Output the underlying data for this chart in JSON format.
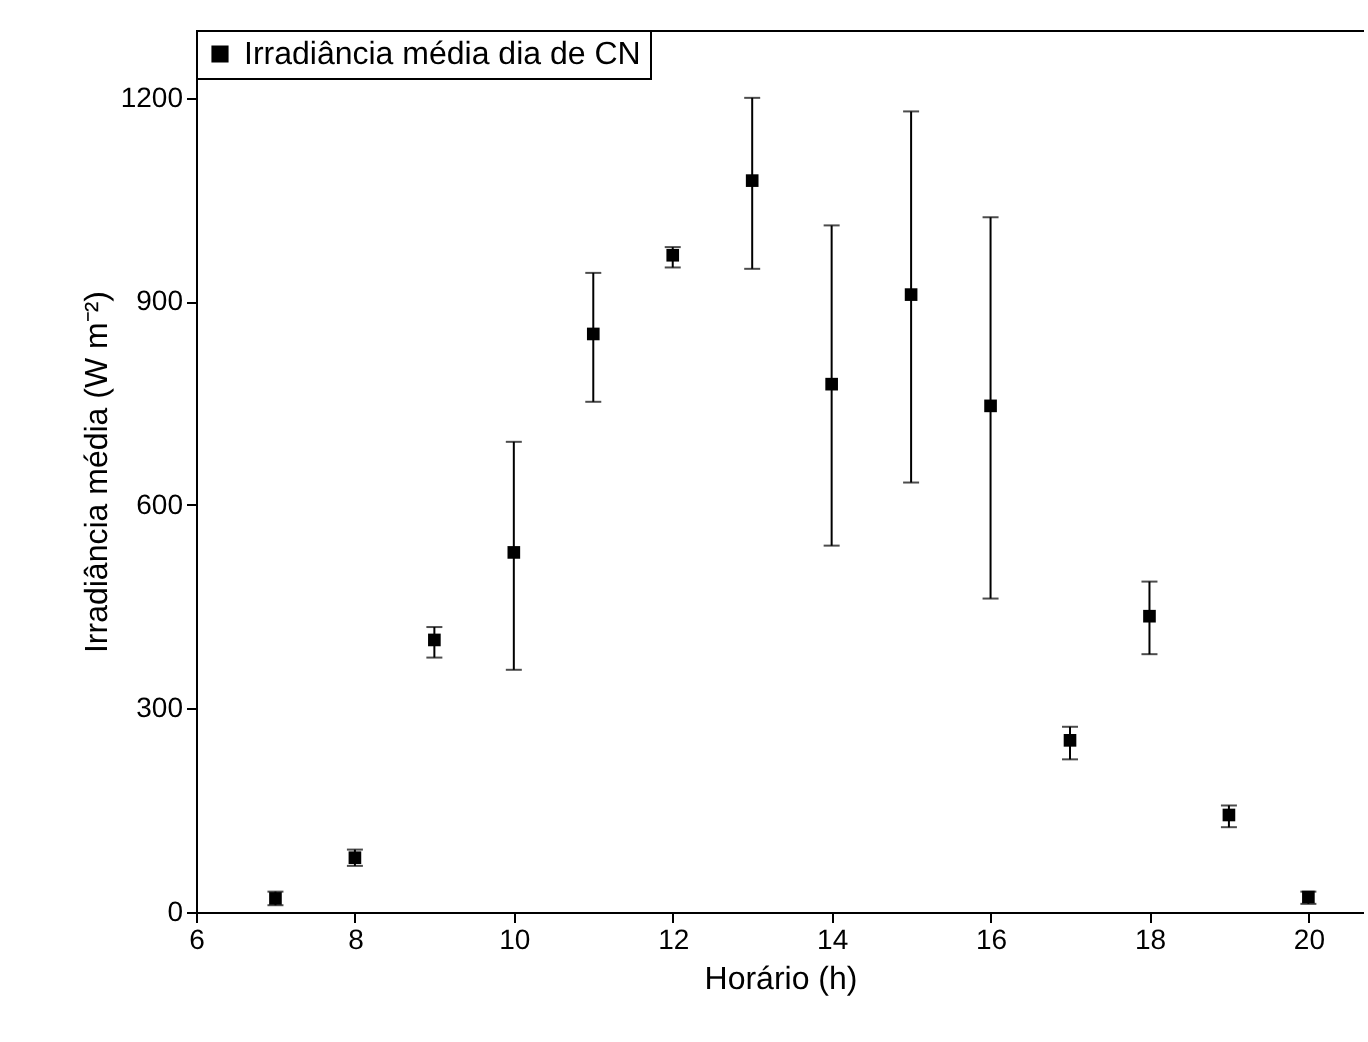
{
  "chart_data": {
    "type": "scatter",
    "xlabel": "Horário (h)",
    "ylabel": "Irradiância média (W m⁻²)",
    "x": [
      7,
      8,
      9,
      10,
      11,
      12,
      13,
      14,
      15,
      16,
      17,
      18,
      19,
      20
    ],
    "series": [
      {
        "name": "Irradiância média dia de CN",
        "color": "#000000",
        "values": [
          20,
          80,
          401,
          530,
          852,
          968,
          1078,
          778,
          910,
          746,
          253,
          436,
          143,
          22
        ],
        "errors": [
          [
            10,
            30
          ],
          [
            68,
            92
          ],
          [
            375,
            420
          ],
          [
            357,
            693
          ],
          [
            752,
            942
          ],
          [
            950,
            980
          ],
          [
            948,
            1200
          ],
          [
            540,
            1012
          ],
          [
            633,
            1180
          ],
          [
            462,
            1024
          ],
          [
            225,
            273
          ],
          [
            380,
            487
          ],
          [
            125,
            157
          ],
          [
            12,
            30
          ]
        ]
      }
    ],
    "xlim": [
      6,
      20.7
    ],
    "ylim": [
      0,
      1300
    ],
    "xticks": [
      6,
      8,
      10,
      12,
      14,
      16,
      18,
      20
    ],
    "yticks": [
      0,
      300,
      600,
      900,
      1200
    ],
    "marker": "square",
    "legend": "top left",
    "grid": false
  }
}
